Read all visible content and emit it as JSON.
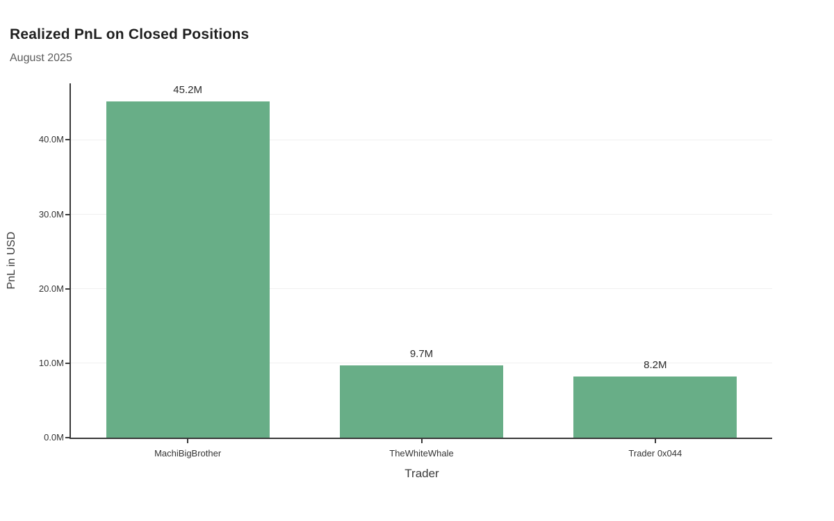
{
  "header": {
    "title": "Realized PnL on Closed Positions",
    "subtitle": "August 2025"
  },
  "chart_data": {
    "type": "bar",
    "title": "Realized PnL on Closed Positions",
    "subtitle": "August 2025",
    "categories": [
      "MachiBigBrother",
      "TheWhiteWhale",
      "Trader 0x044"
    ],
    "values": [
      45.2,
      9.7,
      8.2
    ],
    "value_labels": [
      "45.2M",
      "9.7M",
      "8.2M"
    ],
    "value_unit": "M (millions USD)",
    "xlabel": "Trader",
    "ylabel": "PnL in USD",
    "y_ticks": [
      0,
      10,
      20,
      30,
      40
    ],
    "y_tick_labels": [
      "0.0M",
      "10.0M",
      "20.0M",
      "30.0M",
      "40.0M"
    ],
    "ylim": [
      0,
      47.6
    ],
    "grid": "horizontal-only",
    "legend": "none",
    "colors": {
      "bar": "#68ae87",
      "axis": "#383838",
      "grid": "#f0f0f0",
      "title_text": "#1f1f1f",
      "subtitle_text": "#5c5c5c",
      "tick_text": "#333333"
    }
  }
}
